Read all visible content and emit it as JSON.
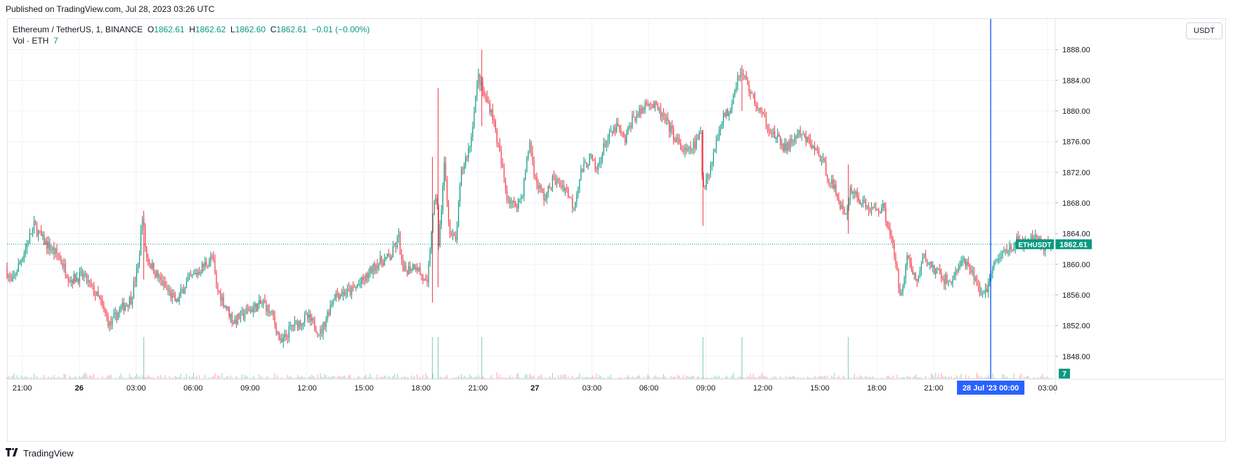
{
  "header": {
    "published": "Published on TradingView.com, Jul 28, 2023 03:26 UTC"
  },
  "legend": {
    "symbol": "Ethereum / TetherUS, 1, BINANCE",
    "o_label": "O",
    "o_value": "1862.61",
    "h_label": "H",
    "h_value": "1862.62",
    "l_label": "L",
    "l_value": "1862.60",
    "c_label": "C",
    "c_value": "1862.61",
    "change": "−0.01 (−0.00%)",
    "vol_label": "Vol · ETH",
    "vol_value": "7"
  },
  "currency": "USDT",
  "footer": {
    "brand": "TradingView",
    "logo_icon": "tradingview-logo-icon"
  },
  "colors": {
    "up": "#089981",
    "down": "#f23645",
    "crosshair": "#2962ff",
    "grid": "#f0f3fa"
  },
  "chart_data": {
    "type": "candlestick",
    "title": "Ethereum / TetherUS, 1, BINANCE",
    "interval": "1",
    "ylim": [
      1845,
      1892
    ],
    "y_ticks": [
      1848,
      1852,
      1856,
      1860,
      1864,
      1868,
      1872,
      1876,
      1880,
      1884,
      1888
    ],
    "y_tick_labels": [
      "1848.00",
      "1852.00",
      "1856.00",
      "1860.00",
      "1864.00",
      "1868.00",
      "1872.00",
      "1876.00",
      "1880.00",
      "1884.00",
      "1888.00"
    ],
    "x_ticks": [
      {
        "label": "21:00",
        "bold": false,
        "hours": 0
      },
      {
        "label": "26",
        "bold": true,
        "hours": 3
      },
      {
        "label": "03:00",
        "bold": false,
        "hours": 6
      },
      {
        "label": "06:00",
        "bold": false,
        "hours": 9
      },
      {
        "label": "09:00",
        "bold": false,
        "hours": 12
      },
      {
        "label": "12:00",
        "bold": false,
        "hours": 15
      },
      {
        "label": "15:00",
        "bold": false,
        "hours": 18
      },
      {
        "label": "18:00",
        "bold": false,
        "hours": 21
      },
      {
        "label": "21:00",
        "bold": false,
        "hours": 24
      },
      {
        "label": "27",
        "bold": true,
        "hours": 27
      },
      {
        "label": "03:00",
        "bold": false,
        "hours": 30
      },
      {
        "label": "06:00",
        "bold": false,
        "hours": 33
      },
      {
        "label": "09:00",
        "bold": false,
        "hours": 36
      },
      {
        "label": "12:00",
        "bold": false,
        "hours": 39
      },
      {
        "label": "15:00",
        "bold": false,
        "hours": 42
      },
      {
        "label": "18:00",
        "bold": false,
        "hours": 45
      },
      {
        "label": "21:00",
        "bold": false,
        "hours": 48
      },
      {
        "label": "03:00",
        "bold": false,
        "hours": 54
      }
    ],
    "x_range_hours": [
      -0.8,
      54.4
    ],
    "crosshair": {
      "hours": 51,
      "label": "28 Jul '23   00:00"
    },
    "last_price": {
      "value": 1862.61,
      "symbol_label": "ETHUSDT",
      "value_label": "1862.61"
    },
    "volume_last": "7",
    "close_path": [
      [
        -0.8,
        1859.5
      ],
      [
        -0.5,
        1857.5
      ],
      [
        0,
        1860.5
      ],
      [
        0.7,
        1865.0
      ],
      [
        1.2,
        1863.0
      ],
      [
        2,
        1861.0
      ],
      [
        2.6,
        1858.0
      ],
      [
        3.3,
        1858.5
      ],
      [
        4.1,
        1855.5
      ],
      [
        4.7,
        1852.0
      ],
      [
        5.2,
        1854.0
      ],
      [
        5.8,
        1855.5
      ],
      [
        6.2,
        1860.0
      ],
      [
        6.4,
        1866.5
      ],
      [
        6.6,
        1861.0
      ],
      [
        7.3,
        1858.0
      ],
      [
        8.2,
        1855.0
      ],
      [
        8.7,
        1857.5
      ],
      [
        9.5,
        1859.5
      ],
      [
        10.1,
        1861.0
      ],
      [
        10.3,
        1857.0
      ],
      [
        11.2,
        1852.5
      ],
      [
        12.0,
        1854.0
      ],
      [
        12.8,
        1855.0
      ],
      [
        13.3,
        1853.0
      ],
      [
        13.7,
        1849.5
      ],
      [
        14.3,
        1852.0
      ],
      [
        15.1,
        1853.0
      ],
      [
        15.8,
        1851.0
      ],
      [
        16.5,
        1856.0
      ],
      [
        17.4,
        1856.5
      ],
      [
        18.1,
        1858.0
      ],
      [
        18.7,
        1860.0
      ],
      [
        19.5,
        1861.0
      ],
      [
        19.9,
        1863.5
      ],
      [
        20.1,
        1859.0
      ],
      [
        20.8,
        1860.0
      ],
      [
        21.4,
        1857.0
      ],
      [
        21.6,
        1864.0
      ],
      [
        21.9,
        1870.0
      ],
      [
        22.0,
        1862.0
      ],
      [
        22.3,
        1873.0
      ],
      [
        22.6,
        1864.0
      ],
      [
        22.9,
        1863.0
      ],
      [
        23.2,
        1872.0
      ],
      [
        23.7,
        1876.0
      ],
      [
        23.9,
        1881.0
      ],
      [
        24.1,
        1884.5
      ],
      [
        24.4,
        1882.0
      ],
      [
        24.8,
        1880.0
      ],
      [
        25.1,
        1876.0
      ],
      [
        25.6,
        1869.0
      ],
      [
        26.0,
        1867.5
      ],
      [
        26.4,
        1869.0
      ],
      [
        26.8,
        1876.0
      ],
      [
        27.1,
        1871.0
      ],
      [
        27.6,
        1868.5
      ],
      [
        28.0,
        1871.0
      ],
      [
        28.7,
        1870.0
      ],
      [
        29.1,
        1867.5
      ],
      [
        29.5,
        1872.0
      ],
      [
        30.0,
        1874.0
      ],
      [
        30.3,
        1872.0
      ],
      [
        30.8,
        1876.0
      ],
      [
        31.4,
        1878.0
      ],
      [
        31.8,
        1876.0
      ],
      [
        32.2,
        1879.0
      ],
      [
        32.7,
        1880.0
      ],
      [
        33.0,
        1881.5
      ],
      [
        33.6,
        1880.0
      ],
      [
        34.1,
        1878.0
      ],
      [
        34.8,
        1875.0
      ],
      [
        35.1,
        1874.5
      ],
      [
        35.6,
        1876.0
      ],
      [
        35.8,
        1877.0
      ],
      [
        35.9,
        1870.0
      ],
      [
        36.3,
        1872.5
      ],
      [
        36.9,
        1879.0
      ],
      [
        37.3,
        1880.0
      ],
      [
        37.8,
        1885.0
      ],
      [
        38.1,
        1884.5
      ],
      [
        38.5,
        1882.0
      ],
      [
        38.9,
        1880.0
      ],
      [
        39.6,
        1877.0
      ],
      [
        40.3,
        1875.0
      ],
      [
        40.9,
        1877.0
      ],
      [
        41.5,
        1876.0
      ],
      [
        42.1,
        1874.0
      ],
      [
        42.6,
        1871.0
      ],
      [
        43.0,
        1869.0
      ],
      [
        43.4,
        1866.0
      ],
      [
        43.7,
        1870.0
      ],
      [
        44.3,
        1868.0
      ],
      [
        44.9,
        1867.0
      ],
      [
        45.4,
        1867.5
      ],
      [
        45.8,
        1864.0
      ],
      [
        46.1,
        1859.5
      ],
      [
        46.3,
        1856.0
      ],
      [
        46.7,
        1861.0
      ],
      [
        47.2,
        1857.5
      ],
      [
        47.5,
        1861.0
      ],
      [
        48.2,
        1859.0
      ],
      [
        48.9,
        1857.5
      ],
      [
        49.6,
        1860.5
      ],
      [
        50.3,
        1858.0
      ],
      [
        50.7,
        1855.5
      ],
      [
        51.1,
        1859.0
      ],
      [
        51.7,
        1861.5
      ],
      [
        52.5,
        1863.0
      ],
      [
        53.0,
        1862.5
      ],
      [
        53.5,
        1864.0
      ],
      [
        53.8,
        1861.5
      ],
      [
        54.1,
        1862.5
      ],
      [
        54.3,
        1862.61
      ]
    ],
    "spikes": [
      {
        "hours": 6.4,
        "high": 1867.0,
        "low": 1858.0
      },
      {
        "hours": 21.9,
        "high": 1883.0,
        "low": 1857.0
      },
      {
        "hours": 21.6,
        "high": 1874.0,
        "low": 1855.0
      },
      {
        "hours": 24.2,
        "high": 1888.0,
        "low": 1878.0
      },
      {
        "hours": 35.85,
        "high": 1877.5,
        "low": 1865.0
      },
      {
        "hours": 37.9,
        "high": 1886.0,
        "low": 1880.0
      },
      {
        "hours": 43.5,
        "high": 1873.0,
        "low": 1864.0
      }
    ]
  }
}
